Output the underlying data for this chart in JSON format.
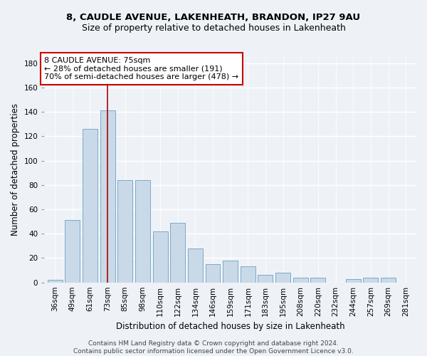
{
  "title1": "8, CAUDLE AVENUE, LAKENHEATH, BRANDON, IP27 9AU",
  "title2": "Size of property relative to detached houses in Lakenheath",
  "xlabel": "Distribution of detached houses by size in Lakenheath",
  "ylabel": "Number of detached properties",
  "categories": [
    "36sqm",
    "49sqm",
    "61sqm",
    "73sqm",
    "85sqm",
    "98sqm",
    "110sqm",
    "122sqm",
    "134sqm",
    "146sqm",
    "159sqm",
    "171sqm",
    "183sqm",
    "195sqm",
    "208sqm",
    "220sqm",
    "232sqm",
    "244sqm",
    "257sqm",
    "269sqm",
    "281sqm"
  ],
  "values": [
    2,
    51,
    126,
    141,
    84,
    84,
    42,
    49,
    28,
    15,
    18,
    13,
    6,
    8,
    4,
    4,
    0,
    3,
    4,
    4,
    0
  ],
  "bar_color": "#c9d9e8",
  "bar_edge_color": "#7aaac8",
  "highlight_bar_index": 3,
  "highlight_line_color": "#aa0000",
  "annotation_text": "8 CAUDLE AVENUE: 75sqm\n← 28% of detached houses are smaller (191)\n70% of semi-detached houses are larger (478) →",
  "annotation_box_color": "#ffffff",
  "annotation_box_edge_color": "#cc0000",
  "footer_text": "Contains HM Land Registry data © Crown copyright and database right 2024.\nContains public sector information licensed under the Open Government Licence v3.0.",
  "ylim": [
    0,
    185
  ],
  "yticks": [
    0,
    20,
    40,
    60,
    80,
    100,
    120,
    140,
    160,
    180
  ],
  "bg_color": "#eef2f7",
  "grid_color": "#ffffff",
  "title_fontsize": 9.5,
  "subtitle_fontsize": 9,
  "axis_label_fontsize": 8.5,
  "tick_fontsize": 7.5,
  "footer_fontsize": 6.5
}
